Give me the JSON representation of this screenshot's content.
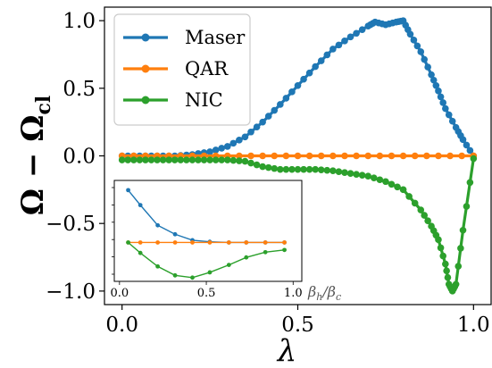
{
  "chart_data": [
    {
      "type": "line",
      "xlabel": "λ",
      "ylabel": "Ω − Ω",
      "ylabel_sub": "cl",
      "xlim": [
        -0.05,
        1.05
      ],
      "ylim": [
        -1.1,
        1.1
      ],
      "xticks": [
        0.0,
        0.5,
        1.0
      ],
      "xtick_labels": [
        "0.0",
        "0.5",
        "1.0"
      ],
      "yticks": [
        -1.0,
        -0.5,
        0.0,
        0.5,
        1.0
      ],
      "ytick_labels": [
        "−1.0",
        "−0.5",
        "0.0",
        "0.5",
        "1.0"
      ],
      "legend": {
        "position": "upper-left"
      },
      "series": [
        {
          "name": "Maser",
          "color": "#1f77b4",
          "x": [
            0.0,
            0.05,
            0.1,
            0.15,
            0.2,
            0.25,
            0.3,
            0.35,
            0.4,
            0.45,
            0.5,
            0.55,
            0.6,
            0.65,
            0.7,
            0.72,
            0.75,
            0.78,
            0.8,
            0.82,
            0.85,
            0.88,
            0.9,
            0.92,
            0.95,
            0.97,
            1.0
          ],
          "y": [
            0.0,
            0.0,
            0.0,
            0.0,
            0.01,
            0.03,
            0.07,
            0.14,
            0.25,
            0.38,
            0.52,
            0.66,
            0.79,
            0.88,
            0.96,
            0.99,
            0.97,
            0.99,
            1.0,
            0.9,
            0.77,
            0.6,
            0.48,
            0.35,
            0.21,
            0.12,
            0.0
          ]
        },
        {
          "name": "QAR",
          "color": "#ff7f0e",
          "x": [
            0.0,
            0.1,
            0.2,
            0.3,
            0.4,
            0.5,
            0.6,
            0.7,
            0.8,
            0.9,
            1.0
          ],
          "y": [
            0.0,
            0.0,
            0.0,
            0.0,
            0.0,
            0.0,
            0.0,
            0.0,
            0.0,
            0.0,
            0.0
          ]
        },
        {
          "name": "NIC",
          "color": "#2ca02c",
          "x": [
            0.0,
            0.05,
            0.1,
            0.15,
            0.2,
            0.25,
            0.3,
            0.35,
            0.4,
            0.45,
            0.5,
            0.55,
            0.6,
            0.65,
            0.7,
            0.75,
            0.8,
            0.85,
            0.88,
            0.9,
            0.92,
            0.93,
            0.94,
            0.95,
            0.97,
            1.0
          ],
          "y": [
            -0.03,
            -0.03,
            -0.03,
            -0.03,
            -0.03,
            -0.03,
            -0.03,
            -0.04,
            -0.08,
            -0.1,
            -0.1,
            -0.1,
            -0.11,
            -0.13,
            -0.15,
            -0.19,
            -0.25,
            -0.4,
            -0.52,
            -0.62,
            -0.8,
            -0.95,
            -1.0,
            -0.95,
            -0.55,
            -0.02
          ]
        }
      ]
    },
    {
      "type": "line",
      "role": "inset",
      "xlabel": "β_h/β_c",
      "xlim": [
        -0.03,
        1.05
      ],
      "ylim": [
        -1.1,
        0.25
      ],
      "xticks": [
        0.0,
        0.5,
        1.0
      ],
      "xtick_labels": [
        "0.0",
        "0.5",
        "1.0"
      ],
      "series": [
        {
          "color": "#1f77b4",
          "x": [
            0.05,
            0.12,
            0.22,
            0.32,
            0.42,
            0.52,
            0.63,
            0.73,
            0.84,
            0.95
          ],
          "y": [
            0.12,
            -0.08,
            -0.35,
            -0.47,
            -0.55,
            -0.57,
            -0.58,
            -0.58,
            -0.58,
            -0.58
          ]
        },
        {
          "color": "#ff7f0e",
          "x": [
            0.05,
            0.12,
            0.22,
            0.32,
            0.42,
            0.52,
            0.63,
            0.73,
            0.84,
            0.95
          ],
          "y": [
            -0.58,
            -0.58,
            -0.58,
            -0.58,
            -0.58,
            -0.58,
            -0.58,
            -0.58,
            -0.58,
            -0.58
          ]
        },
        {
          "color": "#2ca02c",
          "x": [
            0.05,
            0.12,
            0.22,
            0.32,
            0.42,
            0.52,
            0.63,
            0.73,
            0.84,
            0.95
          ],
          "y": [
            -0.58,
            -0.72,
            -0.9,
            -1.02,
            -1.05,
            -0.98,
            -0.88,
            -0.78,
            -0.71,
            -0.68
          ]
        }
      ]
    }
  ]
}
